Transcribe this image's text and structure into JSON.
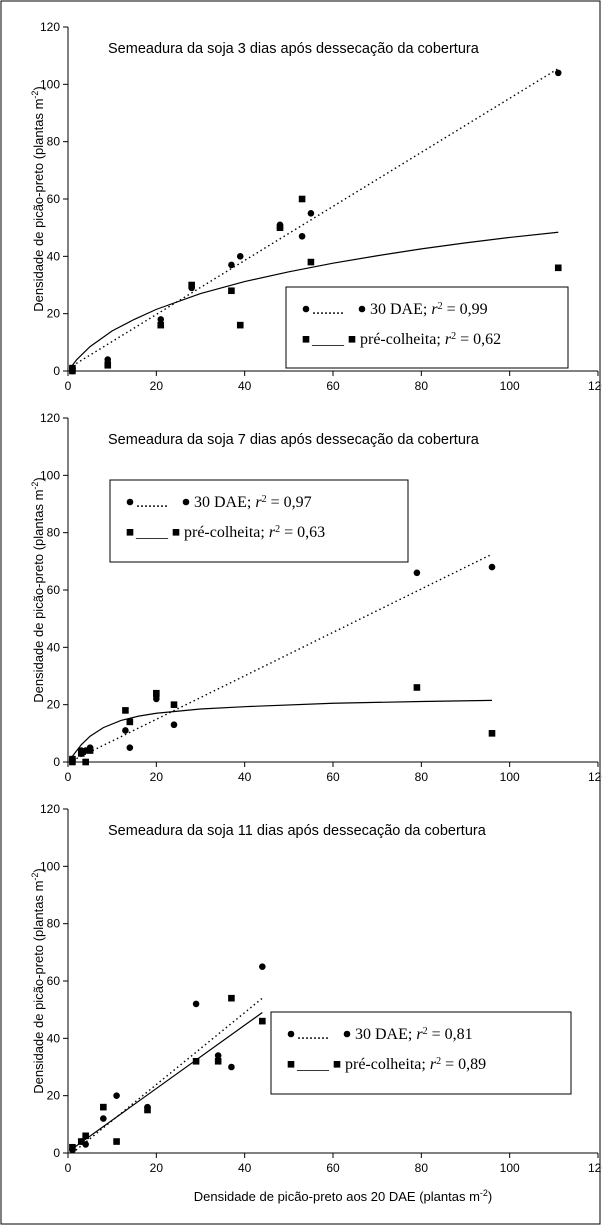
{
  "chart_data": [
    {
      "type": "scatter",
      "title": "Semeadura da soja 3 dias após dessecação da cobertura",
      "ylabel": "Densidade de picão-preto (plantas m",
      "ylabel_sup": "-2",
      "ylabel_end": ")",
      "xlim": [
        0,
        120
      ],
      "ylim": [
        0,
        120
      ],
      "x_ticks": [
        0,
        20,
        40,
        60,
        80,
        100,
        120
      ],
      "y_ticks": [
        0,
        20,
        40,
        60,
        80,
        100,
        120
      ],
      "legend_placement": "bottom-right",
      "series": [
        {
          "legend_dots": "........",
          "legend_label": "30 DAE;",
          "r2_text": "= 0,99",
          "marker": "circle",
          "fit": "linear-dotted",
          "points": [
            [
              1,
              1
            ],
            [
              1,
              0
            ],
            [
              9,
              4
            ],
            [
              9,
              3
            ],
            [
              21,
              18
            ],
            [
              28,
              29
            ],
            [
              37,
              37
            ],
            [
              39,
              40
            ],
            [
              48,
              51
            ],
            [
              48,
              50
            ],
            [
              53,
              47
            ],
            [
              55,
              55
            ],
            [
              111,
              104
            ]
          ],
          "fit_points": [
            [
              1,
              1.8
            ],
            [
              111,
              105.5
            ]
          ]
        },
        {
          "legend_dots": "____",
          "legend_label": "pré-colheita;",
          "r2_text": "= 0,62",
          "marker": "square",
          "fit": "curve-solid",
          "points": [
            [
              1,
              1
            ],
            [
              1,
              0
            ],
            [
              9,
              2
            ],
            [
              21,
              16
            ],
            [
              28,
              30
            ],
            [
              37,
              28
            ],
            [
              39,
              16
            ],
            [
              48,
              50
            ],
            [
              53,
              60
            ],
            [
              55,
              38
            ],
            [
              111,
              36
            ]
          ],
          "fit_points": [
            [
              0.5,
              1
            ],
            [
              2,
              4
            ],
            [
              5,
              8.5
            ],
            [
              10,
              14
            ],
            [
              15,
              18
            ],
            [
              20,
              21.5
            ],
            [
              30,
              27
            ],
            [
              40,
              31.2
            ],
            [
              50,
              34.6
            ],
            [
              60,
              37.6
            ],
            [
              70,
              40.2
            ],
            [
              80,
              42.6
            ],
            [
              90,
              44.7
            ],
            [
              100,
              46.6
            ],
            [
              111,
              48.4
            ]
          ]
        }
      ]
    },
    {
      "type": "scatter",
      "title": "Semeadura da soja 7 dias após dessecação da cobertura",
      "ylabel": "Densidade de picão-preto (plantas m",
      "ylabel_sup": "-2",
      "ylabel_end": ")",
      "xlim": [
        0,
        120
      ],
      "ylim": [
        0,
        120
      ],
      "x_ticks": [
        0,
        20,
        40,
        60,
        80,
        100,
        120
      ],
      "y_ticks": [
        0,
        20,
        40,
        60,
        80,
        100,
        120
      ],
      "legend_placement": "top-left",
      "series": [
        {
          "legend_dots": "........",
          "legend_label": "30 DAE;",
          "r2_text": "= 0,97",
          "marker": "circle",
          "fit": "linear-dotted",
          "points": [
            [
              1,
              1
            ],
            [
              3,
              3
            ],
            [
              3,
              4
            ],
            [
              4,
              4
            ],
            [
              5,
              5
            ],
            [
              13,
              11
            ],
            [
              14,
              5
            ],
            [
              20,
              22
            ],
            [
              20,
              23
            ],
            [
              24,
              13
            ],
            [
              79,
              66
            ],
            [
              96,
              68
            ]
          ],
          "fit_points": [
            [
              1,
              0.5
            ],
            [
              96,
              72.5
            ]
          ]
        },
        {
          "legend_dots": "____",
          "legend_label": "pré-colheita;",
          "r2_text": "= 0,63",
          "marker": "square",
          "fit": "curve-solid",
          "points": [
            [
              1,
              0
            ],
            [
              1,
              1
            ],
            [
              3,
              3
            ],
            [
              4,
              0
            ],
            [
              5,
              4
            ],
            [
              13,
              18
            ],
            [
              14,
              14
            ],
            [
              20,
              24
            ],
            [
              24,
              20
            ],
            [
              79,
              26
            ],
            [
              96,
              10
            ]
          ],
          "fit_points": [
            [
              1,
              2
            ],
            [
              3,
              6
            ],
            [
              5,
              9
            ],
            [
              8,
              12
            ],
            [
              12,
              14.5
            ],
            [
              16,
              16
            ],
            [
              20,
              17
            ],
            [
              30,
              18.5
            ],
            [
              40,
              19.3
            ],
            [
              60,
              20.5
            ],
            [
              80,
              21.1
            ],
            [
              96,
              21.5
            ]
          ]
        }
      ]
    },
    {
      "type": "scatter",
      "title": "Semeadura da soja 11 dias após dessecação da cobertura",
      "ylabel": "Densidade de picão-preto (plantas m",
      "ylabel_sup": "-2",
      "ylabel_end": ")",
      "xlabel": "Densidade de picão-preto aos 20 DAE (plantas m",
      "xlabel_sup": "-2",
      "xlabel_end": ")",
      "xlim": [
        0,
        120
      ],
      "ylim": [
        0,
        120
      ],
      "x_ticks": [
        0,
        20,
        40,
        60,
        80,
        100,
        120
      ],
      "y_ticks": [
        0,
        20,
        40,
        60,
        80,
        100,
        120
      ],
      "legend_placement": "bottom-right",
      "series": [
        {
          "legend_dots": "........",
          "legend_label": "30 DAE;",
          "r2_text": "= 0,81",
          "marker": "circle",
          "fit": "linear-dotted",
          "points": [
            [
              1,
              1
            ],
            [
              3,
              4
            ],
            [
              4,
              3
            ],
            [
              8,
              12
            ],
            [
              11,
              20
            ],
            [
              18,
              16
            ],
            [
              29,
              52
            ],
            [
              34,
              34
            ],
            [
              37,
              30
            ],
            [
              44,
              65
            ]
          ],
          "fit_points": [
            [
              1,
              0
            ],
            [
              44,
              54
            ]
          ]
        },
        {
          "legend_dots": "____",
          "legend_label": "pré-colheita;",
          "r2_text": "= 0,89",
          "marker": "square",
          "fit": "linear-solid",
          "points": [
            [
              1,
              2
            ],
            [
              3,
              4
            ],
            [
              4,
              6
            ],
            [
              8,
              16
            ],
            [
              11,
              4
            ],
            [
              18,
              15
            ],
            [
              29,
              32
            ],
            [
              34,
              32
            ],
            [
              37,
              54
            ],
            [
              44,
              46
            ]
          ],
          "fit_points": [
            [
              1,
              1.5
            ],
            [
              44,
              49
            ]
          ]
        }
      ]
    }
  ]
}
